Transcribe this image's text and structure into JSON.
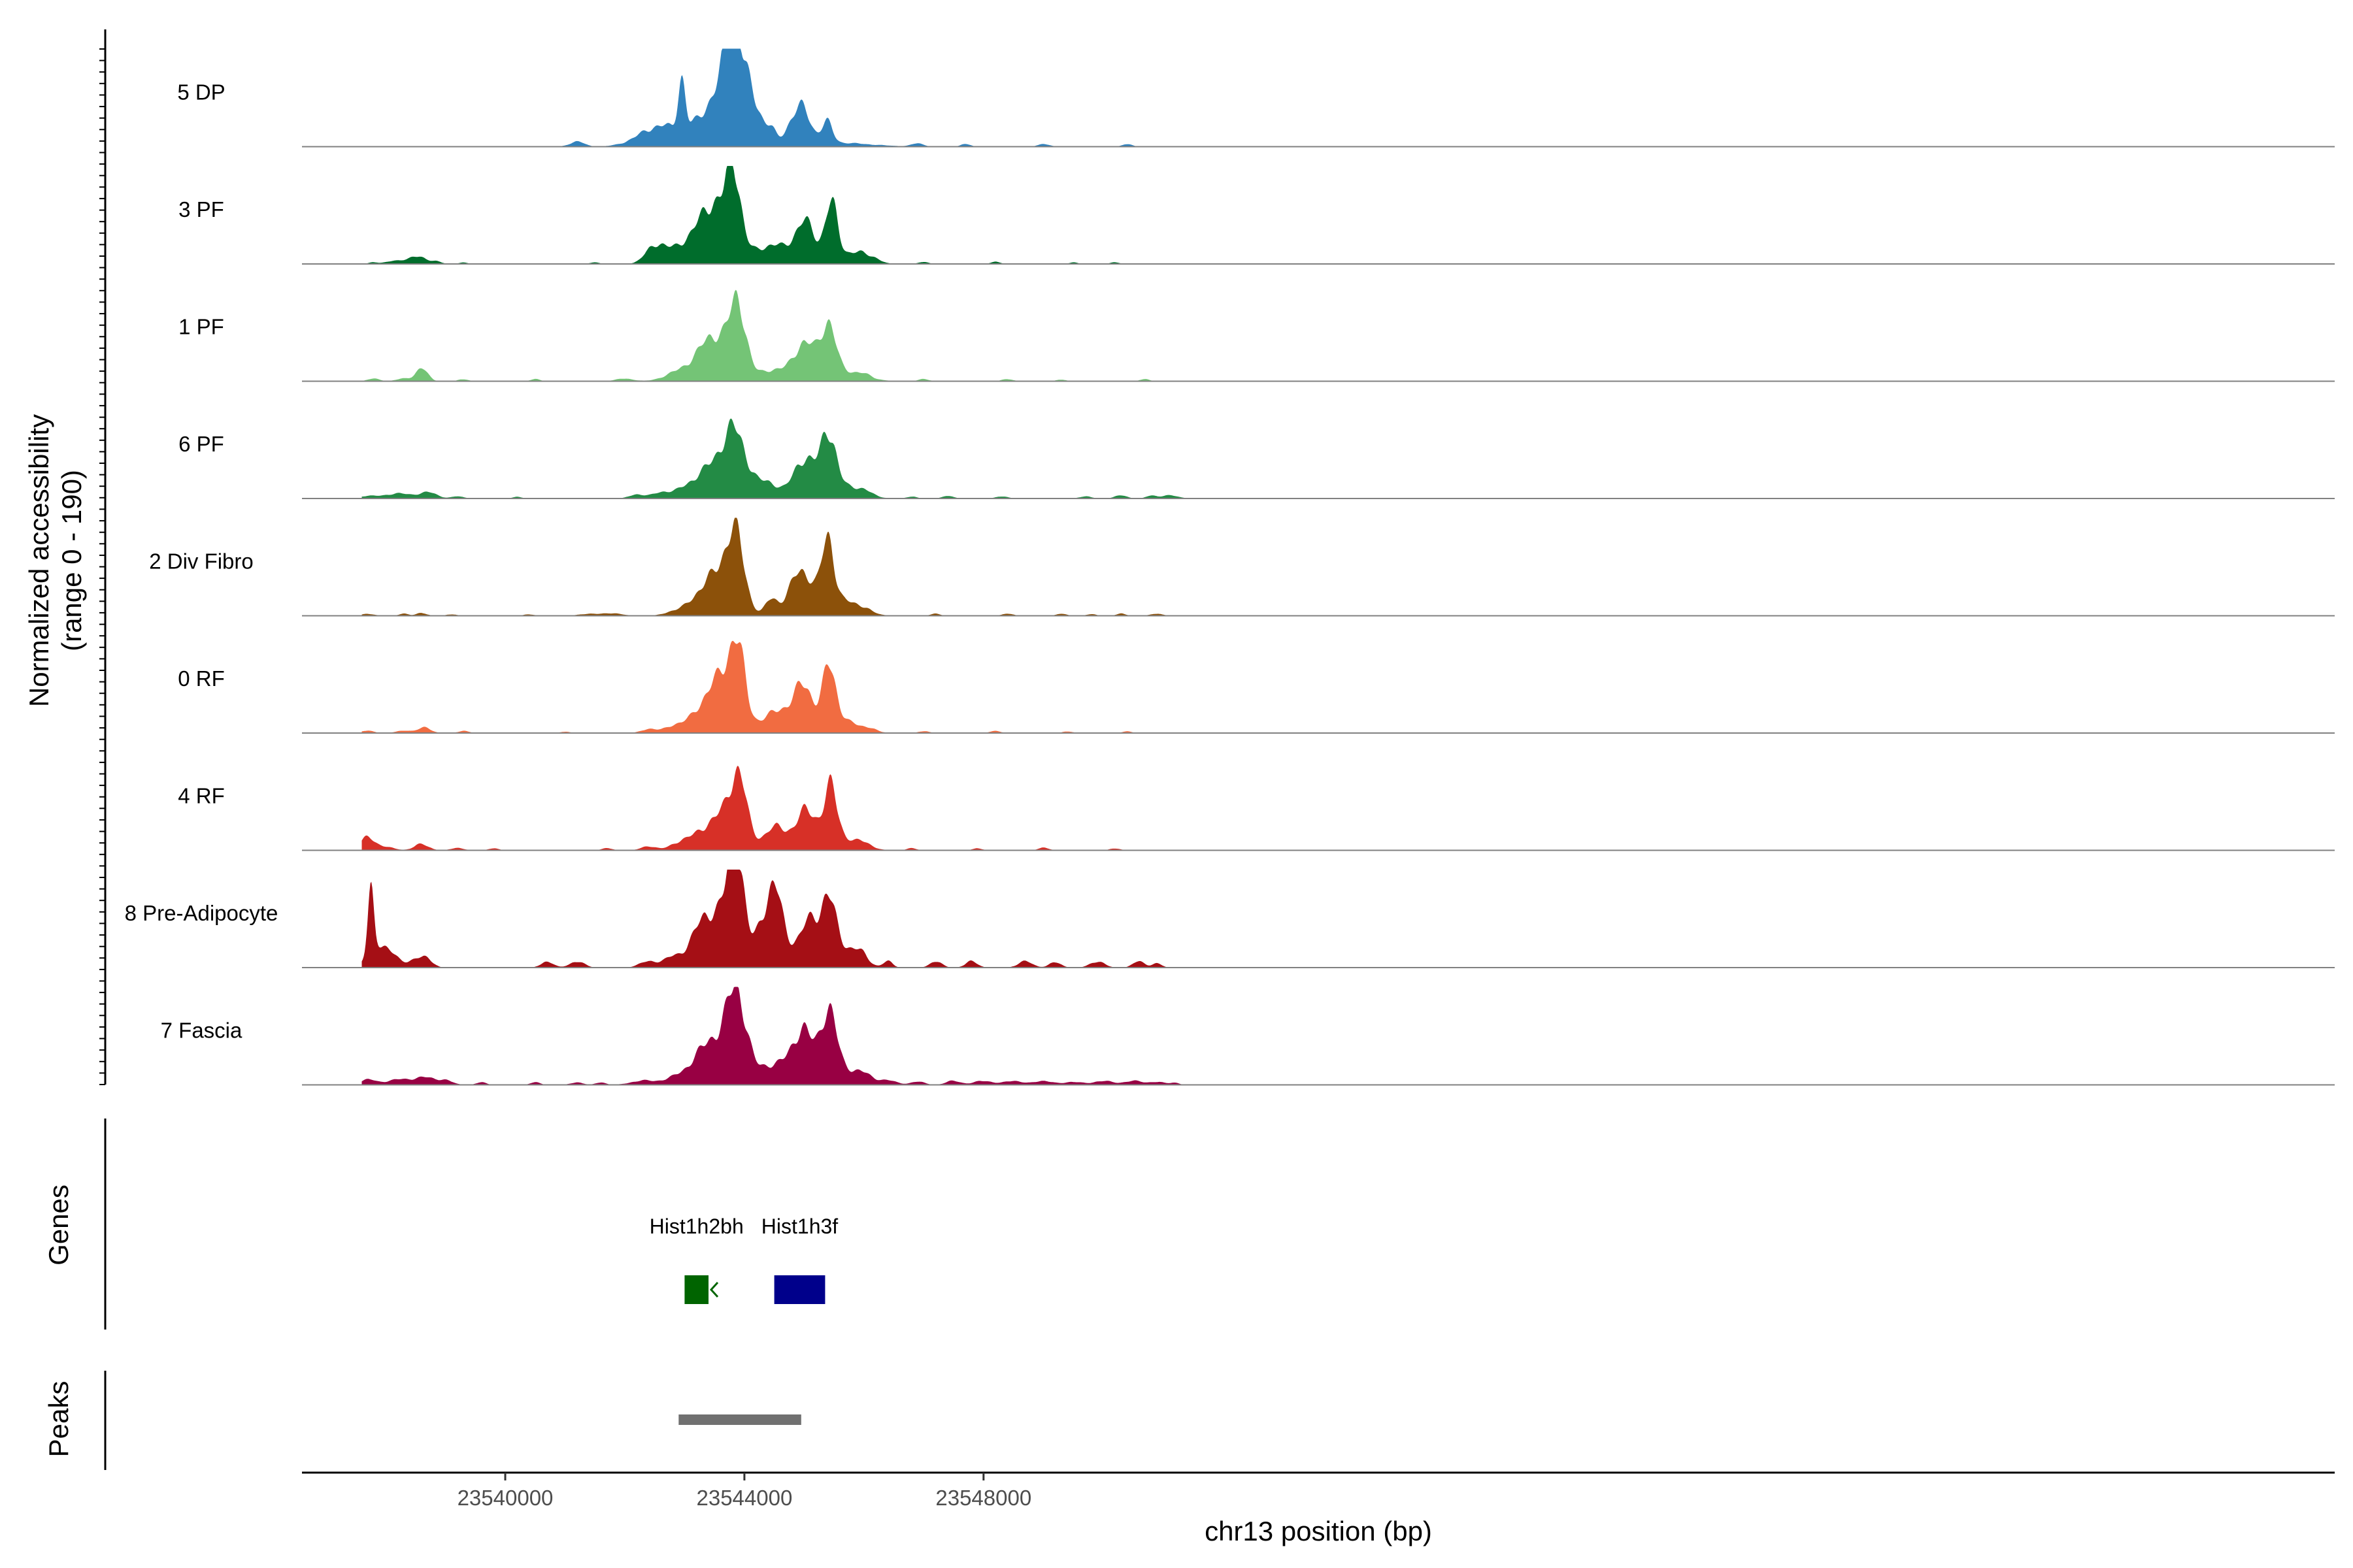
{
  "chart_data": {
    "type": "area",
    "title": "",
    "xlabel": "chr13 position (bp)",
    "ylabel": "Normalized accessibility",
    "ylabel_sub": "(range 0 - 190)",
    "y_range": [
      0,
      190
    ],
    "x_range": [
      23536600,
      23570600
    ],
    "x_ticks": [
      23540000,
      23544000,
      23548000
    ],
    "x_tick_labels": [
      "23540000",
      "23544000",
      "23548000"
    ],
    "tracks": [
      {
        "name": "5 DP",
        "color": "#3182BD",
        "peaks": [
          [
            23541200,
            120,
            10
          ],
          [
            23542600,
            350,
            40
          ],
          [
            23542950,
            60,
            100
          ],
          [
            23543300,
            250,
            30
          ],
          [
            23543850,
            300,
            170
          ],
          [
            23543800,
            90,
            150
          ],
          [
            23544450,
            70,
            15
          ],
          [
            23544760,
            100,
            13
          ],
          [
            23544950,
            150,
            70
          ],
          [
            23545380,
            90,
            40
          ],
          [
            23545450,
            600,
            8
          ],
          [
            23546900,
            100,
            6
          ],
          [
            23547700,
            80,
            5
          ],
          [
            23549000,
            100,
            5
          ],
          [
            23550400,
            80,
            5
          ]
        ]
      },
      {
        "name": "3 PF",
        "color": "#006D2C",
        "peaks": [
          [
            23537800,
            80,
            3
          ],
          [
            23538100,
            120,
            5
          ],
          [
            23538500,
            160,
            15
          ],
          [
            23538850,
            80,
            5
          ],
          [
            23539300,
            70,
            3
          ],
          [
            23541500,
            80,
            3
          ],
          [
            23542500,
            150,
            30
          ],
          [
            23543000,
            300,
            35
          ],
          [
            23543450,
            220,
            65
          ],
          [
            23543820,
            110,
            130
          ],
          [
            23543700,
            300,
            60
          ],
          [
            23544500,
            220,
            35
          ],
          [
            23545000,
            160,
            75
          ],
          [
            23545450,
            100,
            100
          ],
          [
            23545550,
            350,
            20
          ],
          [
            23545950,
            150,
            12
          ],
          [
            23546200,
            90,
            6
          ],
          [
            23547000,
            80,
            4
          ],
          [
            23548200,
            80,
            4
          ],
          [
            23549500,
            70,
            3
          ],
          [
            23550200,
            80,
            3
          ]
        ]
      },
      {
        "name": "1 PF",
        "color": "#74C476",
        "peaks": [
          [
            23537800,
            100,
            5
          ],
          [
            23538300,
            120,
            5
          ],
          [
            23538600,
            100,
            25
          ],
          [
            23539300,
            80,
            4
          ],
          [
            23540500,
            80,
            4
          ],
          [
            23542000,
            150,
            5
          ],
          [
            23542800,
            200,
            10
          ],
          [
            23543200,
            250,
            22
          ],
          [
            23543500,
            250,
            40
          ],
          [
            23543900,
            120,
            110
          ],
          [
            23543700,
            300,
            50
          ],
          [
            23544500,
            200,
            20
          ],
          [
            23545000,
            180,
            70
          ],
          [
            23545400,
            120,
            95
          ],
          [
            23545600,
            350,
            20
          ],
          [
            23546000,
            120,
            5
          ],
          [
            23547000,
            90,
            4
          ],
          [
            23548400,
            90,
            4
          ],
          [
            23549300,
            80,
            3
          ],
          [
            23550700,
            80,
            4
          ]
        ]
      },
      {
        "name": "6 PF",
        "color": "#238B45",
        "peaks": [
          [
            23537700,
            150,
            5
          ],
          [
            23538200,
            200,
            10
          ],
          [
            23538700,
            150,
            12
          ],
          [
            23539200,
            100,
            4
          ],
          [
            23540200,
            80,
            3
          ],
          [
            23542200,
            120,
            8
          ],
          [
            23542600,
            150,
            10
          ],
          [
            23543100,
            250,
            20
          ],
          [
            23543500,
            250,
            50
          ],
          [
            23543850,
            200,
            115
          ],
          [
            23544400,
            180,
            30
          ],
          [
            23545000,
            180,
            75
          ],
          [
            23545400,
            120,
            110
          ],
          [
            23545600,
            300,
            25
          ],
          [
            23546000,
            150,
            8
          ],
          [
            23546800,
            80,
            4
          ],
          [
            23547400,
            90,
            5
          ],
          [
            23548300,
            100,
            4
          ],
          [
            23549700,
            100,
            4
          ],
          [
            23550300,
            100,
            6
          ],
          [
            23550800,
            80,
            5
          ],
          [
            23551100,
            150,
            6
          ]
        ]
      },
      {
        "name": "2 Div Fibro",
        "color": "#8C510A",
        "peaks": [
          [
            23537700,
            100,
            4
          ],
          [
            23538300,
            80,
            4
          ],
          [
            23538600,
            80,
            6
          ],
          [
            23539100,
            80,
            3
          ],
          [
            23540400,
            80,
            3
          ],
          [
            23541400,
            150,
            4
          ],
          [
            23541800,
            150,
            5
          ],
          [
            23542800,
            150,
            6
          ],
          [
            23543300,
            250,
            30
          ],
          [
            23543600,
            250,
            60
          ],
          [
            23543850,
            150,
            130
          ],
          [
            23544450,
            100,
            30
          ],
          [
            23544950,
            200,
            85
          ],
          [
            23545400,
            100,
            125
          ],
          [
            23545600,
            300,
            30
          ],
          [
            23546000,
            120,
            6
          ],
          [
            23547200,
            80,
            4
          ],
          [
            23548400,
            90,
            4
          ],
          [
            23549300,
            80,
            4
          ],
          [
            23549800,
            80,
            3
          ],
          [
            23550300,
            80,
            4
          ],
          [
            23550900,
            100,
            4
          ]
        ]
      },
      {
        "name": "0 RF",
        "color": "#F16C41",
        "peaks": [
          [
            23537700,
            100,
            5
          ],
          [
            23538300,
            120,
            5
          ],
          [
            23538650,
            100,
            12
          ],
          [
            23539300,
            90,
            4
          ],
          [
            23541000,
            70,
            3
          ],
          [
            23542400,
            120,
            8
          ],
          [
            23542800,
            150,
            10
          ],
          [
            23543200,
            250,
            18
          ],
          [
            23543500,
            250,
            40
          ],
          [
            23543880,
            130,
            115
          ],
          [
            23543700,
            250,
            70
          ],
          [
            23544600,
            250,
            45
          ],
          [
            23545000,
            150,
            80
          ],
          [
            23545420,
            110,
            110
          ],
          [
            23545600,
            300,
            25
          ],
          [
            23546100,
            100,
            5
          ],
          [
            23547000,
            80,
            4
          ],
          [
            23548200,
            90,
            4
          ],
          [
            23549400,
            80,
            3
          ],
          [
            23550400,
            80,
            3
          ]
        ]
      },
      {
        "name": "4 RF",
        "color": "#D73027",
        "peaks": [
          [
            23537700,
            120,
            25
          ],
          [
            23538000,
            150,
            6
          ],
          [
            23538600,
            120,
            12
          ],
          [
            23539200,
            100,
            5
          ],
          [
            23539800,
            80,
            4
          ],
          [
            23541700,
            90,
            4
          ],
          [
            23542400,
            120,
            8
          ],
          [
            23542900,
            150,
            8
          ],
          [
            23543200,
            250,
            18
          ],
          [
            23543550,
            250,
            35
          ],
          [
            23543900,
            130,
            105
          ],
          [
            23543800,
            250,
            40
          ],
          [
            23544550,
            200,
            45
          ],
          [
            23545050,
            160,
            75
          ],
          [
            23545450,
            110,
            105
          ],
          [
            23545600,
            300,
            20
          ],
          [
            23546000,
            120,
            10
          ],
          [
            23546800,
            80,
            4
          ],
          [
            23547900,
            80,
            4
          ],
          [
            23549000,
            90,
            5
          ],
          [
            23550200,
            80,
            4
          ]
        ]
      },
      {
        "name": "8 Pre-Adipocyte",
        "color": "#A50F15",
        "peaks": [
          [
            23537750,
            50,
            115
          ],
          [
            23537850,
            150,
            40
          ],
          [
            23538100,
            150,
            20
          ],
          [
            23538500,
            120,
            15
          ],
          [
            23538700,
            100,
            15
          ],
          [
            23540700,
            100,
            12
          ],
          [
            23541200,
            120,
            12
          ],
          [
            23542400,
            150,
            12
          ],
          [
            23542800,
            150,
            18
          ],
          [
            23543250,
            200,
            40
          ],
          [
            23543500,
            250,
            70
          ],
          [
            23543850,
            120,
            180
          ],
          [
            23543900,
            300,
            50
          ],
          [
            23544300,
            100,
            50
          ],
          [
            23544500,
            120,
            120
          ],
          [
            23544700,
            200,
            40
          ],
          [
            23545100,
            150,
            80
          ],
          [
            23545400,
            120,
            100
          ],
          [
            23545600,
            250,
            40
          ],
          [
            23545950,
            120,
            18
          ],
          [
            23546400,
            80,
            12
          ],
          [
            23547200,
            100,
            12
          ],
          [
            23547800,
            100,
            12
          ],
          [
            23548700,
            120,
            12
          ],
          [
            23549200,
            100,
            10
          ],
          [
            23549900,
            120,
            12
          ],
          [
            23550600,
            100,
            12
          ],
          [
            23550900,
            80,
            8
          ]
        ]
      },
      {
        "name": "7 Fascia",
        "color": "#980043",
        "peaks": [
          [
            23537700,
            130,
            10
          ],
          [
            23538200,
            200,
            10
          ],
          [
            23538650,
            180,
            14
          ],
          [
            23539000,
            120,
            8
          ],
          [
            23539600,
            80,
            5
          ],
          [
            23540500,
            80,
            5
          ],
          [
            23541200,
            100,
            5
          ],
          [
            23541600,
            80,
            5
          ],
          [
            23542300,
            200,
            8
          ],
          [
            23542800,
            200,
            8
          ],
          [
            23543200,
            250,
            25
          ],
          [
            23543500,
            250,
            40
          ],
          [
            23543880,
            150,
            135
          ],
          [
            23543700,
            300,
            50
          ],
          [
            23544400,
            200,
            30
          ],
          [
            23544800,
            200,
            40
          ],
          [
            23545000,
            150,
            80
          ],
          [
            23545400,
            130,
            125
          ],
          [
            23545600,
            300,
            30
          ],
          [
            23546000,
            150,
            12
          ],
          [
            23546400,
            150,
            8
          ],
          [
            23546900,
            120,
            6
          ],
          [
            23547500,
            120,
            8
          ],
          [
            23548000,
            150,
            8
          ],
          [
            23548500,
            150,
            8
          ],
          [
            23549000,
            150,
            8
          ],
          [
            23549500,
            150,
            6
          ],
          [
            23550000,
            150,
            8
          ],
          [
            23550500,
            150,
            8
          ],
          [
            23550900,
            120,
            6
          ],
          [
            23551200,
            80,
            4
          ]
        ]
      }
    ],
    "genes": [
      {
        "name": "Hist1h2bh",
        "start": 23543000,
        "end": 23543400,
        "strand": "-",
        "color": "#006400"
      },
      {
        "name": "Hist1h3f",
        "start": 23544500,
        "end": 23545350,
        "strand": "+",
        "color": "#00008B"
      }
    ],
    "gene_track_label": "Genes",
    "peaks_track": {
      "label": "Peaks",
      "regions": [
        [
          23542900,
          23544950
        ]
      ],
      "color": "#707070"
    }
  }
}
